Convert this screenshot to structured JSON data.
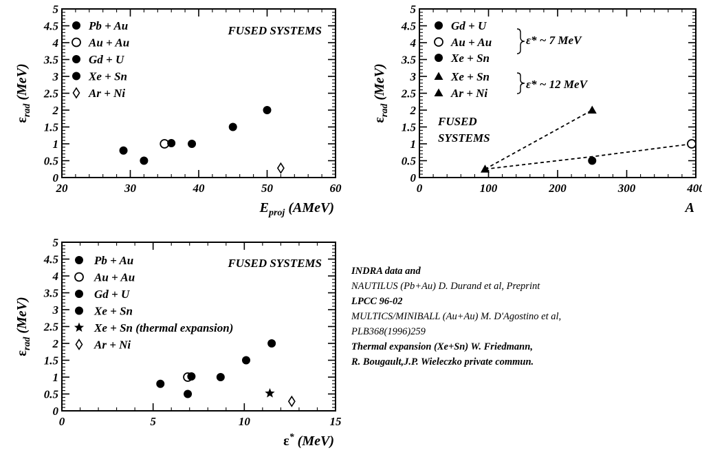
{
  "chart_data": [
    {
      "type": "scatter",
      "id": "p1",
      "xlabel": "E",
      "xlabel_sub": "proj",
      "xlabel_tail": " (AMeV)",
      "ylabel": "ε",
      "ylabel_sub": "rad",
      "ylabel_tail": " (MeV)",
      "xlim": [
        20,
        60
      ],
      "ylim": [
        0,
        5
      ],
      "xticks": [
        "20",
        "30",
        "40",
        "50",
        "60"
      ],
      "yticks": [
        "0",
        "0.5",
        "1",
        "1.5",
        "2",
        "2.5",
        "3",
        "3.5",
        "4",
        "4.5",
        "5"
      ],
      "annotation": "FUSED SYSTEMS",
      "series": [
        {
          "name": "Pb + Au",
          "marker": "filled-circle",
          "points": [
            [
              29,
              0.8
            ],
            [
              45,
              1.5
            ],
            [
              50,
              2.0
            ]
          ]
        },
        {
          "name": "Au + Au",
          "marker": "open-circle",
          "points": [
            [
              35,
              1.0
            ]
          ]
        },
        {
          "name": "Gd + U",
          "marker": "filled-circle",
          "points": [
            [
              36,
              1.02
            ]
          ]
        },
        {
          "name": "Xe + Sn",
          "marker": "filled-circle",
          "points": [
            [
              32,
              0.5
            ],
            [
              39,
              1.0
            ]
          ]
        },
        {
          "name": "Ar + Ni",
          "marker": "open-diamond",
          "points": [
            [
              52,
              0.28
            ]
          ]
        }
      ]
    },
    {
      "type": "scatter",
      "id": "p2",
      "xlabel": "A",
      "xlabel_sub": "",
      "xlabel_tail": "",
      "ylabel": "ε",
      "ylabel_sub": "rad",
      "ylabel_tail": " (MeV)",
      "xlim": [
        0,
        400
      ],
      "ylim": [
        0,
        5
      ],
      "xticks": [
        "0",
        "100",
        "200",
        "300",
        "400"
      ],
      "yticks": [
        "0",
        "0.5",
        "1",
        "1.5",
        "2",
        "2.5",
        "3",
        "3.5",
        "4",
        "4.5",
        "5"
      ],
      "annotation": [
        "FUSED",
        "SYSTEMS"
      ],
      "group_labels": [
        "ε* ~ 7 MeV",
        "ε* ~ 12 MeV"
      ],
      "series": [
        {
          "name": "Gd + U",
          "marker": "filled-circle",
          "points": [
            [
              395,
              1.0
            ]
          ]
        },
        {
          "name": "Au + Au",
          "marker": "open-circle",
          "points": [
            [
              394,
              1.0
            ]
          ]
        },
        {
          "name": "Xe + Sn",
          "marker": "filled-circle",
          "points": [
            [
              250,
              0.5
            ]
          ]
        },
        {
          "name": "Xe + Sn",
          "marker": "filled-triangle",
          "points": [
            [
              250,
              2.0
            ]
          ]
        },
        {
          "name": "Ar + Ni",
          "marker": "filled-triangle",
          "points": [
            [
              95,
              0.25
            ]
          ]
        }
      ],
      "dashed_lines": [
        [
          [
            95,
            0.25
          ],
          [
            250,
            2.0
          ]
        ],
        [
          [
            95,
            0.25
          ],
          [
            250,
            0.62
          ],
          [
            395,
            1.0
          ]
        ]
      ]
    },
    {
      "type": "scatter",
      "id": "p3",
      "xlabel": "ε",
      "xlabel_sub": "",
      "xlabel_sup": "*",
      "xlabel_tail": " (MeV)",
      "ylabel": "ε",
      "ylabel_sub": "rad",
      "ylabel_tail": " (MeV)",
      "xlim": [
        0,
        15
      ],
      "ylim": [
        0,
        5
      ],
      "xticks": [
        "0",
        "5",
        "10",
        "15"
      ],
      "yticks": [
        "0",
        "0.5",
        "1",
        "1.5",
        "2",
        "2.5",
        "3",
        "3.5",
        "4",
        "4.5",
        "5"
      ],
      "annotation": "FUSED SYSTEMS",
      "series": [
        {
          "name": "Pb + Au",
          "marker": "filled-circle",
          "points": [
            [
              5.4,
              0.8
            ],
            [
              10.1,
              1.5
            ],
            [
              11.5,
              2.0
            ]
          ]
        },
        {
          "name": "Au + Au",
          "marker": "open-circle",
          "points": [
            [
              6.9,
              1.0
            ]
          ]
        },
        {
          "name": "Gd + U",
          "marker": "filled-circle",
          "points": [
            [
              7.1,
              1.02
            ]
          ]
        },
        {
          "name": "Xe + Sn",
          "marker": "filled-circle",
          "points": [
            [
              6.9,
              0.5
            ],
            [
              8.7,
              1.0
            ]
          ]
        },
        {
          "name": "Xe + Sn (thermal expansion)",
          "marker": "filled-star",
          "points": [
            [
              11.4,
              0.52
            ]
          ]
        },
        {
          "name": "Ar + Ni",
          "marker": "open-diamond",
          "points": [
            [
              12.6,
              0.28
            ]
          ]
        }
      ]
    }
  ],
  "notes": [
    {
      "text": "INDRA data and",
      "weight": "bold"
    },
    {
      "text": "NAUTILUS (Pb+Au) D. Durand et al, Preprint",
      "weight": "light"
    },
    {
      "text": "LPCC 96-02",
      "weight": "bold"
    },
    {
      "text": "MULTICS/MINIBALL (Au+Au) M. D'Agostino et al,",
      "weight": "light"
    },
    {
      "text": "PLB368(1996)259",
      "weight": "light"
    },
    {
      "text": "Thermal expansion (Xe+Sn) W. Friedmann,",
      "weight": "bold"
    },
    {
      "text": "R. Bougault,J.P. Wieleczko private commun.",
      "weight": "bold"
    }
  ]
}
